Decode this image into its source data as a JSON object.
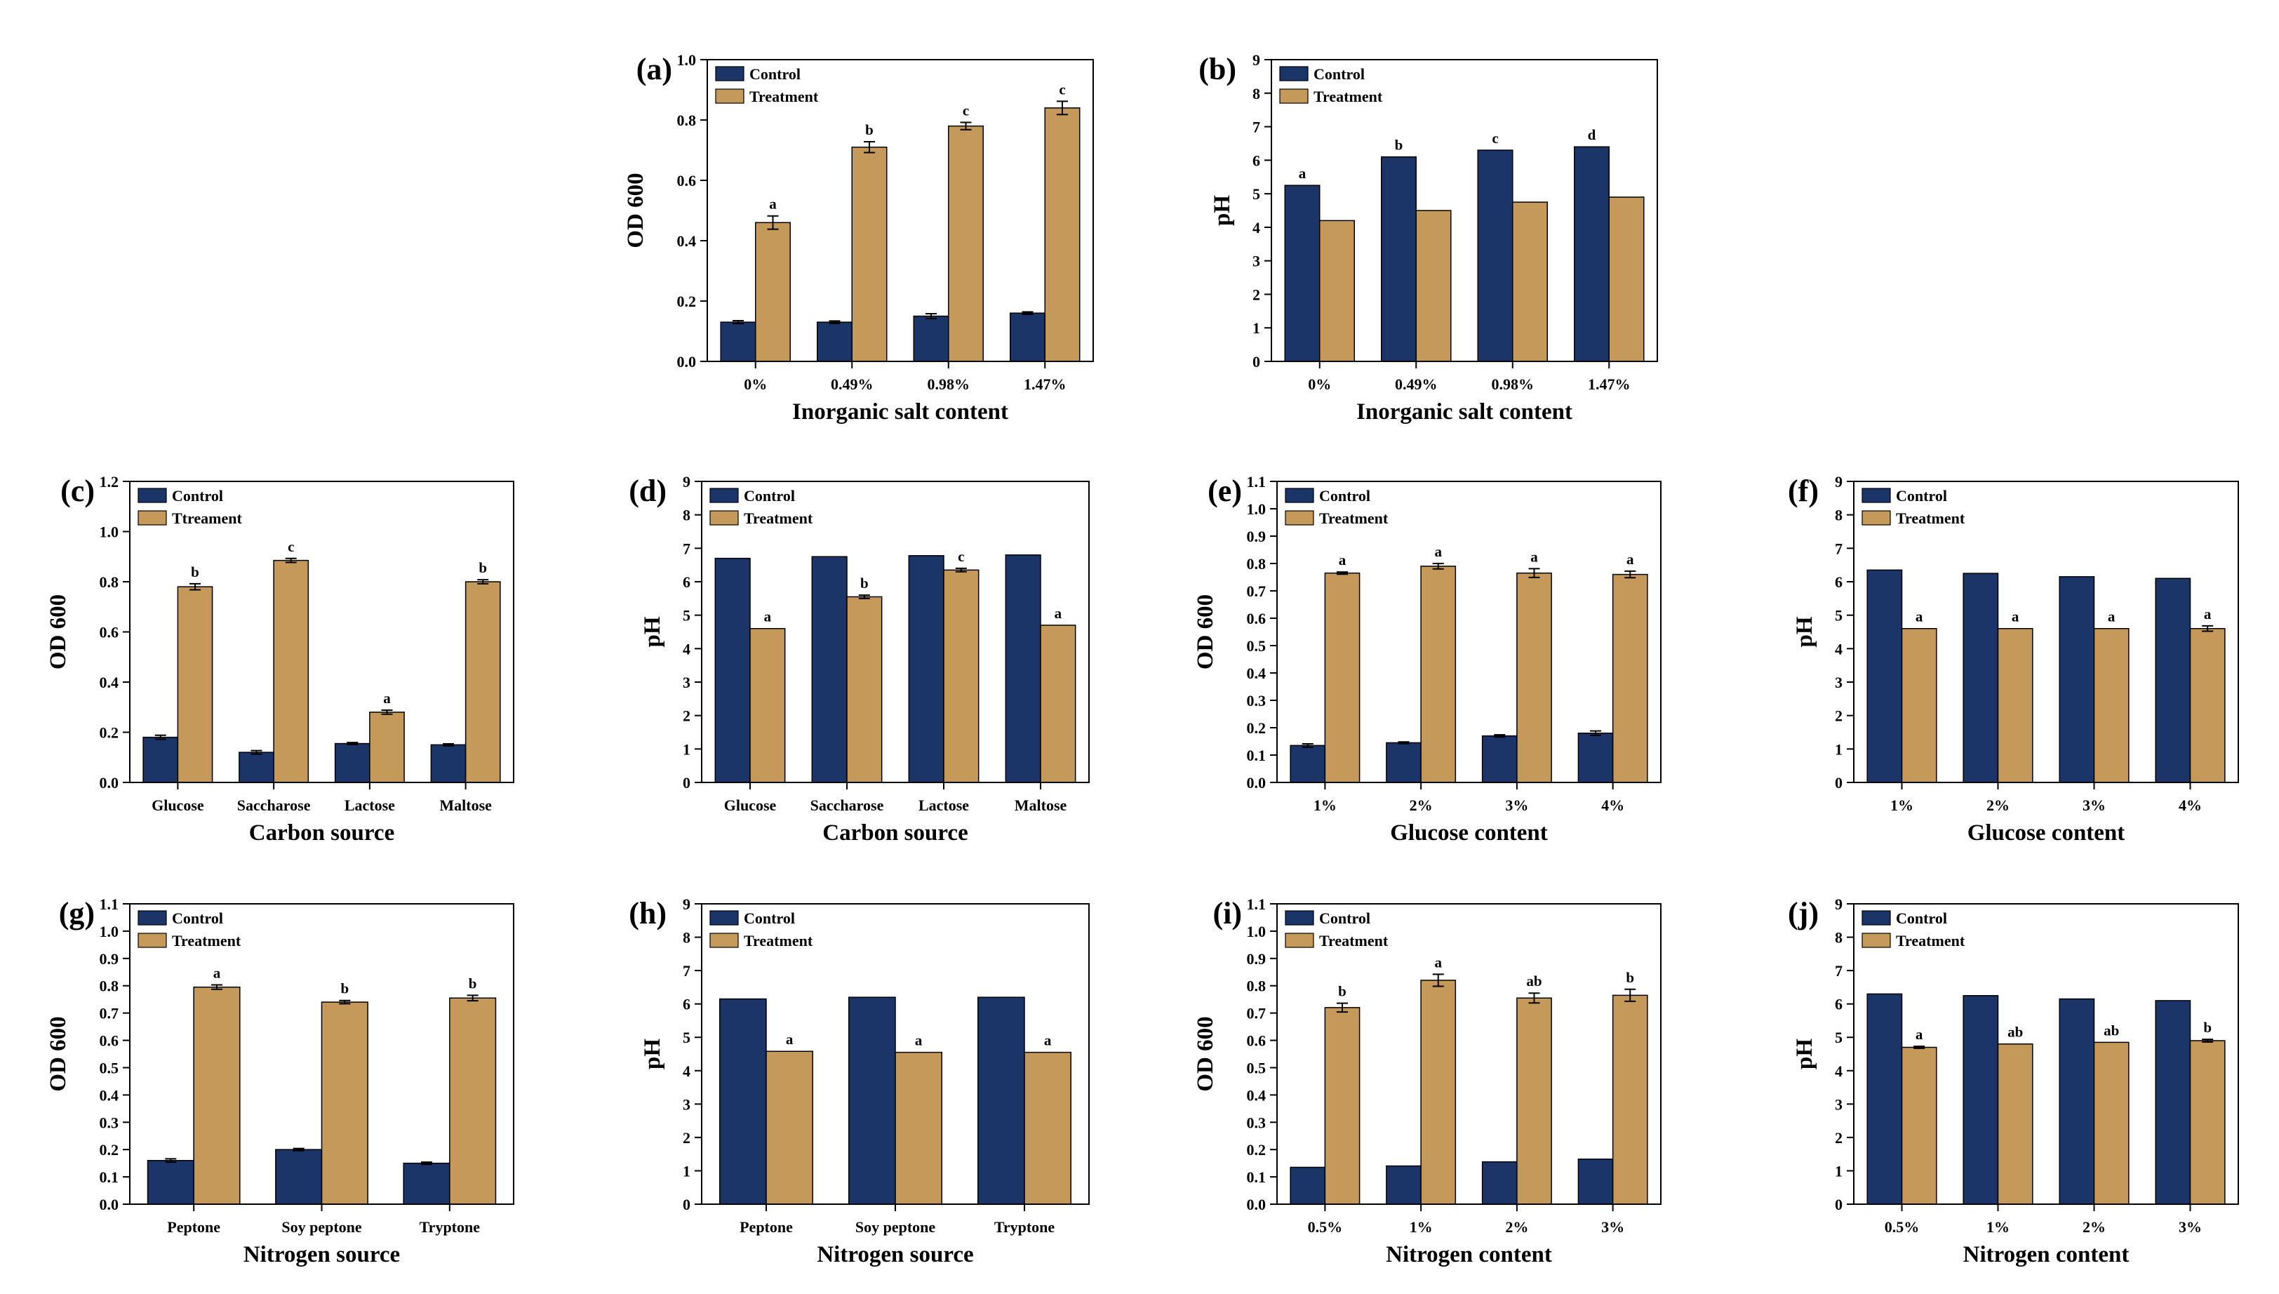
{
  "colors": {
    "control": "#1B3568",
    "treatment": "#C4995A",
    "axis": "#000000"
  },
  "chart_data": [
    {
      "id": "a",
      "panel_label": "(a)",
      "type": "bar",
      "categories": [
        "0%",
        "0.49%",
        "0.98%",
        "1.47%"
      ],
      "xlabel": "Inorganic salt content",
      "ylabel": "OD 600",
      "ylim": [
        0,
        1.0
      ],
      "yticks": [
        "0.0",
        "0.2",
        "0.4",
        "0.6",
        "0.8",
        "1.0"
      ],
      "legend": [
        "Control",
        "Treatment"
      ],
      "series": [
        {
          "name": "Control",
          "values": [
            0.13,
            0.13,
            0.15,
            0.16
          ],
          "errors": [
            0.005,
            0.004,
            0.008,
            0.004
          ]
        },
        {
          "name": "Treatment",
          "values": [
            0.46,
            0.71,
            0.78,
            0.84
          ],
          "errors": [
            0.022,
            0.018,
            0.012,
            0.022
          ],
          "labels": [
            "a",
            "b",
            "c",
            "c"
          ]
        }
      ]
    },
    {
      "id": "b",
      "panel_label": "(b)",
      "type": "bar",
      "categories": [
        "0%",
        "0.49%",
        "0.98%",
        "1.47%"
      ],
      "xlabel": "Inorganic salt content",
      "ylabel": "pH",
      "ylim": [
        0,
        9
      ],
      "yticks": [
        "0",
        "1",
        "2",
        "3",
        "4",
        "5",
        "6",
        "7",
        "8",
        "9"
      ],
      "legend": [
        "Control",
        "Treatment"
      ],
      "series": [
        {
          "name": "Control",
          "values": [
            5.25,
            6.1,
            6.3,
            6.4
          ],
          "labels": [
            "a",
            "b",
            "c",
            "d"
          ]
        },
        {
          "name": "Treatment",
          "values": [
            4.2,
            4.5,
            4.75,
            4.9
          ]
        }
      ]
    },
    {
      "id": "c",
      "panel_label": "(c)",
      "type": "bar",
      "categories": [
        "Glucose",
        "Saccharose",
        "Lactose",
        "Maltose"
      ],
      "xlabel": "Carbon source",
      "ylabel": "OD 600",
      "ylim": [
        0,
        1.2
      ],
      "yticks": [
        "0.0",
        "0.2",
        "0.4",
        "0.6",
        "0.8",
        "1.0",
        "1.2"
      ],
      "legend": [
        "Control",
        "Ttreament"
      ],
      "series": [
        {
          "name": "Control",
          "values": [
            0.18,
            0.12,
            0.155,
            0.15
          ],
          "errors": [
            0.008,
            0.007,
            0.004,
            0.004
          ]
        },
        {
          "name": "Ttreament",
          "values": [
            0.78,
            0.885,
            0.28,
            0.8
          ],
          "errors": [
            0.012,
            0.008,
            0.008,
            0.008
          ],
          "labels": [
            "b",
            "c",
            "a",
            "b"
          ]
        }
      ]
    },
    {
      "id": "d",
      "panel_label": "(d)",
      "type": "bar",
      "categories": [
        "Glucose",
        "Saccharose",
        "Lactose",
        "Maltose"
      ],
      "xlabel": "Carbon source",
      "ylabel": "pH",
      "ylim": [
        0,
        9
      ],
      "yticks": [
        "0",
        "1",
        "2",
        "3",
        "4",
        "5",
        "6",
        "7",
        "8",
        "9"
      ],
      "legend": [
        "Control",
        "Treatment"
      ],
      "series": [
        {
          "name": "Control",
          "values": [
            6.7,
            6.75,
            6.78,
            6.8
          ]
        },
        {
          "name": "Treatment",
          "values": [
            4.6,
            5.55,
            6.35,
            4.7
          ],
          "errors": [
            0,
            0.05,
            0.05,
            0
          ],
          "labels": [
            "a",
            "b",
            "c",
            "a"
          ]
        }
      ]
    },
    {
      "id": "e",
      "panel_label": "(e)",
      "type": "bar",
      "categories": [
        "1%",
        "2%",
        "3%",
        "4%"
      ],
      "xlabel": "Glucose content",
      "ylabel": "OD 600",
      "ylim": [
        0,
        1.1
      ],
      "yticks": [
        "0.0",
        "0.1",
        "0.2",
        "0.3",
        "0.4",
        "0.5",
        "0.6",
        "0.7",
        "0.8",
        "0.9",
        "1.0",
        "1.1"
      ],
      "legend": [
        "Control",
        "Treatment"
      ],
      "series": [
        {
          "name": "Control",
          "values": [
            0.135,
            0.145,
            0.17,
            0.18
          ],
          "errors": [
            0.006,
            0.003,
            0.004,
            0.008
          ]
        },
        {
          "name": "Treatment",
          "values": [
            0.765,
            0.79,
            0.765,
            0.76
          ],
          "errors": [
            0.004,
            0.01,
            0.016,
            0.012
          ],
          "labels": [
            "a",
            "a",
            "a",
            "a"
          ]
        }
      ]
    },
    {
      "id": "f",
      "panel_label": "(f)",
      "type": "bar",
      "categories": [
        "1%",
        "2%",
        "3%",
        "4%"
      ],
      "xlabel": "Glucose content",
      "ylabel": "pH",
      "ylim": [
        0,
        9
      ],
      "yticks": [
        "0",
        "1",
        "2",
        "3",
        "4",
        "5",
        "6",
        "7",
        "8",
        "9"
      ],
      "legend": [
        "Control",
        "Treatment"
      ],
      "series": [
        {
          "name": "Control",
          "values": [
            6.35,
            6.25,
            6.15,
            6.1
          ]
        },
        {
          "name": "Treatment",
          "values": [
            4.6,
            4.6,
            4.6,
            4.6
          ],
          "errors": [
            0,
            0,
            0,
            0.08
          ],
          "labels": [
            "a",
            "a",
            "a",
            "a"
          ]
        }
      ]
    },
    {
      "id": "g",
      "panel_label": "(g)",
      "type": "bar",
      "categories": [
        "Peptone",
        "Soy peptone",
        "Tryptone"
      ],
      "xlabel": "Nitrogen source",
      "ylabel": "OD 600",
      "ylim": [
        0,
        1.1
      ],
      "yticks": [
        "0.0",
        "0.1",
        "0.2",
        "0.3",
        "0.4",
        "0.5",
        "0.6",
        "0.7",
        "0.8",
        "0.9",
        "1.0",
        "1.1"
      ],
      "legend": [
        "Control",
        "Treatment"
      ],
      "series": [
        {
          "name": "Control",
          "values": [
            0.16,
            0.2,
            0.15
          ],
          "errors": [
            0.006,
            0.004,
            0.004
          ]
        },
        {
          "name": "Treatment",
          "values": [
            0.795,
            0.74,
            0.755
          ],
          "errors": [
            0.008,
            0.006,
            0.01
          ],
          "labels": [
            "a",
            "b",
            "b"
          ]
        }
      ]
    },
    {
      "id": "h",
      "panel_label": "(h)",
      "type": "bar",
      "categories": [
        "Peptone",
        "Soy peptone",
        "Tryptone"
      ],
      "xlabel": "Nitrogen source",
      "ylabel": "pH",
      "ylim": [
        0,
        9
      ],
      "yticks": [
        "0",
        "1",
        "2",
        "3",
        "4",
        "5",
        "6",
        "7",
        "8",
        "9"
      ],
      "legend": [
        "Control",
        "Treatment"
      ],
      "series": [
        {
          "name": "Control",
          "values": [
            6.15,
            6.2,
            6.2
          ]
        },
        {
          "name": "Treatment",
          "values": [
            4.58,
            4.55,
            4.55
          ],
          "labels": [
            "a",
            "a",
            "a"
          ]
        }
      ]
    },
    {
      "id": "i",
      "panel_label": "(i)",
      "type": "bar",
      "categories": [
        "0.5%",
        "1%",
        "2%",
        "3%"
      ],
      "xlabel": "Nitrogen content",
      "ylabel": "OD 600",
      "ylim": [
        0,
        1.1
      ],
      "yticks": [
        "0.0",
        "0.1",
        "0.2",
        "0.3",
        "0.4",
        "0.5",
        "0.6",
        "0.7",
        "0.8",
        "0.9",
        "1.0",
        "1.1"
      ],
      "legend": [
        "Control",
        "Treatment"
      ],
      "series": [
        {
          "name": "Control",
          "values": [
            0.135,
            0.14,
            0.155,
            0.165
          ]
        },
        {
          "name": "Treatment",
          "values": [
            0.72,
            0.82,
            0.755,
            0.765
          ],
          "errors": [
            0.016,
            0.022,
            0.018,
            0.022
          ],
          "labels": [
            "b",
            "a",
            "ab",
            "b"
          ]
        }
      ]
    },
    {
      "id": "j",
      "panel_label": "(j)",
      "type": "bar",
      "categories": [
        "0.5%",
        "1%",
        "2%",
        "3%"
      ],
      "xlabel": "Nitrogen content",
      "ylabel": "pH",
      "ylim": [
        0,
        9
      ],
      "yticks": [
        "0",
        "1",
        "2",
        "3",
        "4",
        "5",
        "6",
        "7",
        "8",
        "9"
      ],
      "legend": [
        "Control",
        "Treatment"
      ],
      "series": [
        {
          "name": "Control",
          "values": [
            6.3,
            6.25,
            6.15,
            6.1
          ]
        },
        {
          "name": "Treatment",
          "values": [
            4.7,
            4.8,
            4.85,
            4.9
          ],
          "errors": [
            0.03,
            0,
            0,
            0.04
          ],
          "labels": [
            "a",
            "ab",
            "ab",
            "b"
          ]
        }
      ]
    }
  ]
}
